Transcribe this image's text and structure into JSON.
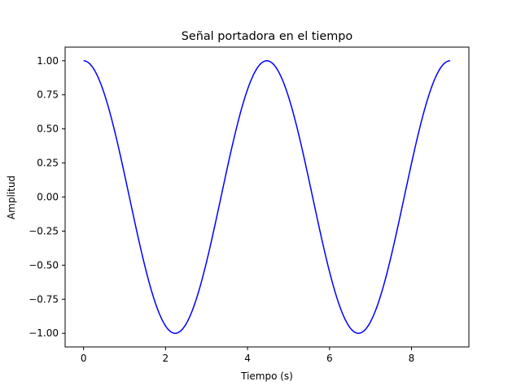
{
  "chart_data": {
    "type": "line",
    "title": "Señal portadora en el tiempo",
    "xlabel": "Tiempo (s)",
    "ylabel": "Amplitud",
    "xlim": [
      -0.45,
      9.4
    ],
    "ylim": [
      -1.1,
      1.1
    ],
    "x_ticks": [
      0,
      2,
      4,
      6,
      8
    ],
    "x_tick_labels": [
      "0",
      "2",
      "4",
      "6",
      "8"
    ],
    "y_ticks": [
      1.0,
      0.75,
      0.5,
      0.25,
      0.0,
      -0.25,
      -0.5,
      -0.75,
      -1.0
    ],
    "y_tick_labels": [
      "1.00",
      "0.75",
      "0.50",
      "0.25",
      "0.00",
      "−0.25",
      "−0.50",
      "−0.75",
      "−1.00"
    ],
    "grid": false,
    "legend": "none",
    "series": [
      {
        "color": "#0000ff",
        "function": "cosine",
        "amplitude": 1.0,
        "period": 4.47,
        "x_range": [
          0,
          8.94
        ],
        "points": [
          [
            0.0,
            1.0
          ],
          [
            0.56,
            0.71
          ],
          [
            1.12,
            0.0
          ],
          [
            1.68,
            -0.71
          ],
          [
            2.235,
            -1.0
          ],
          [
            2.79,
            -0.71
          ],
          [
            3.35,
            0.0
          ],
          [
            3.91,
            0.71
          ],
          [
            4.47,
            1.0
          ],
          [
            5.03,
            0.71
          ],
          [
            5.59,
            0.0
          ],
          [
            6.15,
            -0.71
          ],
          [
            6.705,
            -1.0
          ],
          [
            7.26,
            -0.71
          ],
          [
            7.82,
            0.0
          ],
          [
            8.38,
            0.71
          ],
          [
            8.94,
            1.0
          ]
        ]
      }
    ]
  }
}
